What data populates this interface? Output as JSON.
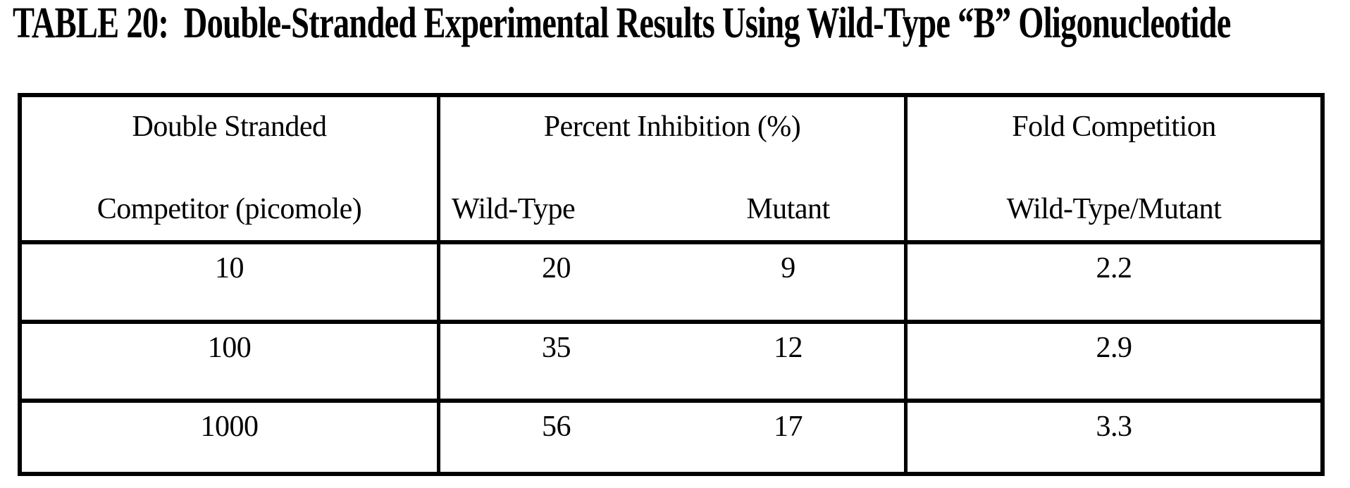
{
  "document": {
    "title": "TABLE 20:  Double-Stranded Experimental Results Using Wild-Type “B” Oligonucleotide"
  },
  "table": {
    "header": {
      "col1_line1": "Double Stranded",
      "col1_line2": "Competitor (picomole)",
      "col2_group": "Percent Inhibition (%)",
      "col2_sub1": "Wild-Type",
      "col2_sub2": "Mutant",
      "col3_line1": "Fold Competition",
      "col3_line2": "Wild-Type/Mutant"
    },
    "rows": [
      {
        "competitor_picomole": "10",
        "wild_type": "20",
        "mutant": "9",
        "fold_competition": "2.2"
      },
      {
        "competitor_picomole": "100",
        "wild_type": "35",
        "mutant": "12",
        "fold_competition": "2.9"
      },
      {
        "competitor_picomole": "1000",
        "wild_type": "56",
        "mutant": "17",
        "fold_competition": "3.3"
      }
    ]
  },
  "colors": {
    "ink": "#000000",
    "paper": "#ffffff"
  }
}
